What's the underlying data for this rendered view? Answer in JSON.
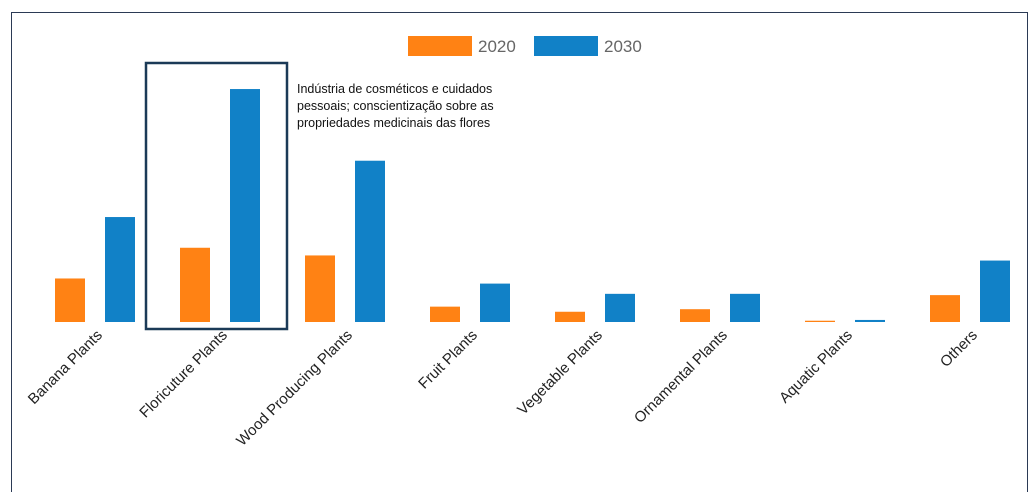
{
  "chart_data": {
    "type": "bar",
    "title": "",
    "xlabel": "",
    "ylabel": "",
    "categories": [
      "Banana Plants",
      "Floricuture Plants",
      "Wood Producing Plants",
      "Fruit Plants",
      "Vegetable Plants",
      "Ornamental Plants",
      "Aquatic Plants",
      "Others"
    ],
    "series": [
      {
        "name": "2020",
        "color": "#ff8214",
        "values": [
          1.7,
          2.9,
          2.6,
          0.6,
          0.4,
          0.5,
          0.05,
          1.05
        ]
      },
      {
        "name": "2030",
        "color": "#1181c7",
        "values": [
          4.1,
          9.1,
          6.3,
          1.5,
          1.1,
          1.1,
          0.08,
          2.4
        ]
      }
    ],
    "ylim": [
      0,
      10
    ],
    "grid": false,
    "legend_position": "top-center",
    "annotation": {
      "category": "Floricuture Plants",
      "lines": [
        "Indústria de cosméticos e cuidados",
        "pessoais; conscientização sobre as",
        "propriedades medicinais das flores"
      ],
      "box_color": "#1b3a57"
    }
  }
}
